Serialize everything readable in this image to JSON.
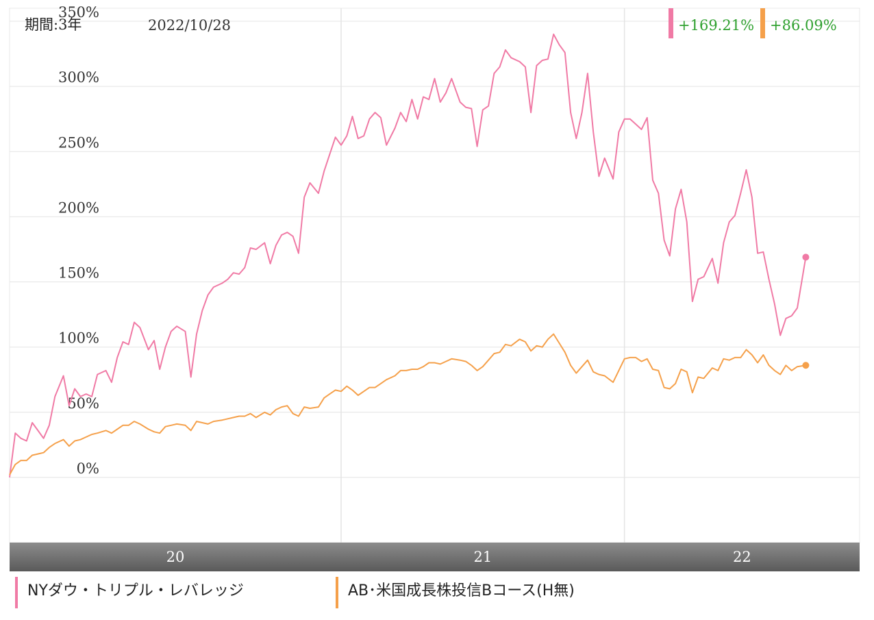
{
  "header": {
    "period_label": "期間:3年",
    "date_label": "2022/10/28"
  },
  "colors": {
    "series1": "#f07aa5",
    "series2": "#f5a04a",
    "return_text": "#2ea02e",
    "grid": "#e4e4e4",
    "axis_text": "#333333",
    "axis_bar_top": "#8c8c8c",
    "axis_bar_bottom": "#5a5a5a"
  },
  "chart_data": {
    "type": "line",
    "ylim": [
      -50,
      360
    ],
    "yticks": [
      0,
      50,
      100,
      150,
      200,
      250,
      300,
      350
    ],
    "ytick_labels": [
      "0%",
      "50%",
      "100%",
      "150%",
      "200%",
      "250%",
      "300%",
      "350%"
    ],
    "xlim": [
      2019.83,
      2022.83
    ],
    "xticks": [
      2020,
      2021,
      2022
    ],
    "year_labels": [
      "20",
      "21",
      "22"
    ],
    "returns": [
      "+169.21%",
      "+86.09%"
    ],
    "series": [
      {
        "name": "NYダウ・トリプル・レバレッジ",
        "color": "#f07aa5",
        "points": [
          [
            2019.83,
            0
          ],
          [
            2019.85,
            34
          ],
          [
            2019.87,
            30
          ],
          [
            2019.89,
            28
          ],
          [
            2019.91,
            42
          ],
          [
            2019.93,
            36
          ],
          [
            2019.95,
            30
          ],
          [
            2019.97,
            40
          ],
          [
            2019.99,
            62
          ],
          [
            2020.02,
            78
          ],
          [
            2020.04,
            55
          ],
          [
            2020.06,
            68
          ],
          [
            2020.08,
            62
          ],
          [
            2020.1,
            64
          ],
          [
            2020.12,
            62
          ],
          [
            2020.14,
            79
          ],
          [
            2020.17,
            82
          ],
          [
            2020.19,
            73
          ],
          [
            2020.21,
            92
          ],
          [
            2020.23,
            104
          ],
          [
            2020.25,
            102
          ],
          [
            2020.27,
            119
          ],
          [
            2020.29,
            115
          ],
          [
            2020.32,
            98
          ],
          [
            2020.34,
            105
          ],
          [
            2020.36,
            83
          ],
          [
            2020.38,
            100
          ],
          [
            2020.4,
            112
          ],
          [
            2020.42,
            116
          ],
          [
            2020.45,
            112
          ],
          [
            2020.47,
            77
          ],
          [
            2020.49,
            110
          ],
          [
            2020.51,
            128
          ],
          [
            2020.53,
            140
          ],
          [
            2020.55,
            146
          ],
          [
            2020.58,
            149
          ],
          [
            2020.6,
            152
          ],
          [
            2020.62,
            157
          ],
          [
            2020.64,
            156
          ],
          [
            2020.66,
            161
          ],
          [
            2020.68,
            176
          ],
          [
            2020.7,
            175
          ],
          [
            2020.73,
            180
          ],
          [
            2020.75,
            164
          ],
          [
            2020.77,
            178
          ],
          [
            2020.79,
            186
          ],
          [
            2020.81,
            188
          ],
          [
            2020.83,
            185
          ],
          [
            2020.85,
            172
          ],
          [
            2020.87,
            215
          ],
          [
            2020.89,
            226
          ],
          [
            2020.92,
            218
          ],
          [
            2020.94,
            235
          ],
          [
            2020.96,
            248
          ],
          [
            2020.98,
            261
          ],
          [
            2021.0,
            255
          ],
          [
            2021.02,
            262
          ],
          [
            2021.04,
            277
          ],
          [
            2021.06,
            260
          ],
          [
            2021.08,
            262
          ],
          [
            2021.1,
            275
          ],
          [
            2021.12,
            280
          ],
          [
            2021.14,
            276
          ],
          [
            2021.16,
            255
          ],
          [
            2021.19,
            268
          ],
          [
            2021.21,
            280
          ],
          [
            2021.23,
            273
          ],
          [
            2021.25,
            290
          ],
          [
            2021.27,
            275
          ],
          [
            2021.29,
            292
          ],
          [
            2021.31,
            290
          ],
          [
            2021.33,
            306
          ],
          [
            2021.35,
            288
          ],
          [
            2021.37,
            295
          ],
          [
            2021.39,
            306
          ],
          [
            2021.42,
            288
          ],
          [
            2021.44,
            284
          ],
          [
            2021.46,
            283
          ],
          [
            2021.48,
            254
          ],
          [
            2021.5,
            282
          ],
          [
            2021.52,
            285
          ],
          [
            2021.54,
            310
          ],
          [
            2021.56,
            315
          ],
          [
            2021.58,
            328
          ],
          [
            2021.6,
            322
          ],
          [
            2021.63,
            319
          ],
          [
            2021.65,
            315
          ],
          [
            2021.67,
            280
          ],
          [
            2021.69,
            316
          ],
          [
            2021.71,
            320
          ],
          [
            2021.73,
            321
          ],
          [
            2021.75,
            340
          ],
          [
            2021.77,
            332
          ],
          [
            2021.79,
            326
          ],
          [
            2021.81,
            280
          ],
          [
            2021.83,
            260
          ],
          [
            2021.85,
            280
          ],
          [
            2021.87,
            310
          ],
          [
            2021.89,
            265
          ],
          [
            2021.91,
            231
          ],
          [
            2021.93,
            245
          ],
          [
            2021.96,
            229
          ],
          [
            2021.98,
            265
          ],
          [
            2022.0,
            275
          ],
          [
            2022.02,
            275
          ],
          [
            2022.04,
            271
          ],
          [
            2022.06,
            267
          ],
          [
            2022.08,
            276
          ],
          [
            2022.1,
            228
          ],
          [
            2022.12,
            218
          ],
          [
            2022.14,
            182
          ],
          [
            2022.16,
            170
          ],
          [
            2022.18,
            206
          ],
          [
            2022.2,
            221
          ],
          [
            2022.22,
            196
          ],
          [
            2022.24,
            135
          ],
          [
            2022.26,
            152
          ],
          [
            2022.28,
            154
          ],
          [
            2022.31,
            168
          ],
          [
            2022.33,
            149
          ],
          [
            2022.35,
            180
          ],
          [
            2022.37,
            196
          ],
          [
            2022.39,
            201
          ],
          [
            2022.41,
            218
          ],
          [
            2022.43,
            236
          ],
          [
            2022.45,
            215
          ],
          [
            2022.47,
            172
          ],
          [
            2022.49,
            173
          ],
          [
            2022.51,
            152
          ],
          [
            2022.53,
            133
          ],
          [
            2022.55,
            109
          ],
          [
            2022.57,
            122
          ],
          [
            2022.59,
            124
          ],
          [
            2022.61,
            130
          ],
          [
            2022.64,
            169
          ]
        ]
      },
      {
        "name": "AB･米国成長株投信Bコース(H無)",
        "color": "#f5a04a",
        "points": [
          [
            2019.83,
            2
          ],
          [
            2019.85,
            10
          ],
          [
            2019.87,
            13
          ],
          [
            2019.89,
            13
          ],
          [
            2019.91,
            17
          ],
          [
            2019.93,
            18
          ],
          [
            2019.95,
            19
          ],
          [
            2019.97,
            23
          ],
          [
            2019.99,
            26
          ],
          [
            2020.02,
            29
          ],
          [
            2020.04,
            24
          ],
          [
            2020.06,
            28
          ],
          [
            2020.08,
            29
          ],
          [
            2020.1,
            31
          ],
          [
            2020.12,
            33
          ],
          [
            2020.14,
            34
          ],
          [
            2020.17,
            36
          ],
          [
            2020.19,
            34
          ],
          [
            2020.21,
            37
          ],
          [
            2020.23,
            40
          ],
          [
            2020.25,
            40
          ],
          [
            2020.27,
            43
          ],
          [
            2020.29,
            41
          ],
          [
            2020.32,
            37
          ],
          [
            2020.34,
            35
          ],
          [
            2020.36,
            34
          ],
          [
            2020.38,
            39
          ],
          [
            2020.4,
            40
          ],
          [
            2020.42,
            41
          ],
          [
            2020.45,
            40
          ],
          [
            2020.47,
            36
          ],
          [
            2020.49,
            43
          ],
          [
            2020.51,
            42
          ],
          [
            2020.53,
            41
          ],
          [
            2020.55,
            43
          ],
          [
            2020.58,
            44
          ],
          [
            2020.6,
            45
          ],
          [
            2020.62,
            46
          ],
          [
            2020.64,
            47
          ],
          [
            2020.66,
            47
          ],
          [
            2020.68,
            49
          ],
          [
            2020.7,
            46
          ],
          [
            2020.73,
            50
          ],
          [
            2020.75,
            48
          ],
          [
            2020.77,
            52
          ],
          [
            2020.79,
            54
          ],
          [
            2020.81,
            55
          ],
          [
            2020.83,
            49
          ],
          [
            2020.85,
            47
          ],
          [
            2020.87,
            54
          ],
          [
            2020.89,
            53
          ],
          [
            2020.92,
            54
          ],
          [
            2020.94,
            61
          ],
          [
            2020.96,
            64
          ],
          [
            2020.98,
            67
          ],
          [
            2021.0,
            66
          ],
          [
            2021.02,
            70
          ],
          [
            2021.04,
            67
          ],
          [
            2021.06,
            63
          ],
          [
            2021.08,
            66
          ],
          [
            2021.1,
            69
          ],
          [
            2021.12,
            69
          ],
          [
            2021.14,
            72
          ],
          [
            2021.16,
            75
          ],
          [
            2021.19,
            78
          ],
          [
            2021.21,
            82
          ],
          [
            2021.23,
            82
          ],
          [
            2021.25,
            83
          ],
          [
            2021.27,
            83
          ],
          [
            2021.29,
            85
          ],
          [
            2021.31,
            88
          ],
          [
            2021.33,
            88
          ],
          [
            2021.35,
            87
          ],
          [
            2021.37,
            89
          ],
          [
            2021.39,
            91
          ],
          [
            2021.42,
            90
          ],
          [
            2021.44,
            89
          ],
          [
            2021.46,
            86
          ],
          [
            2021.48,
            82
          ],
          [
            2021.5,
            85
          ],
          [
            2021.52,
            90
          ],
          [
            2021.54,
            95
          ],
          [
            2021.56,
            96
          ],
          [
            2021.58,
            102
          ],
          [
            2021.6,
            101
          ],
          [
            2021.63,
            106
          ],
          [
            2021.65,
            104
          ],
          [
            2021.67,
            97
          ],
          [
            2021.69,
            101
          ],
          [
            2021.71,
            100
          ],
          [
            2021.73,
            106
          ],
          [
            2021.75,
            110
          ],
          [
            2021.77,
            103
          ],
          [
            2021.79,
            96
          ],
          [
            2021.81,
            86
          ],
          [
            2021.83,
            80
          ],
          [
            2021.85,
            85
          ],
          [
            2021.87,
            90
          ],
          [
            2021.89,
            81
          ],
          [
            2021.91,
            79
          ],
          [
            2021.93,
            78
          ],
          [
            2021.96,
            73
          ],
          [
            2021.98,
            82
          ],
          [
            2022.0,
            91
          ],
          [
            2022.02,
            92
          ],
          [
            2022.04,
            92
          ],
          [
            2022.06,
            89
          ],
          [
            2022.08,
            91
          ],
          [
            2022.1,
            83
          ],
          [
            2022.12,
            82
          ],
          [
            2022.14,
            69
          ],
          [
            2022.16,
            68
          ],
          [
            2022.18,
            72
          ],
          [
            2022.2,
            83
          ],
          [
            2022.22,
            81
          ],
          [
            2022.24,
            65
          ],
          [
            2022.26,
            77
          ],
          [
            2022.28,
            76
          ],
          [
            2022.31,
            84
          ],
          [
            2022.33,
            82
          ],
          [
            2022.35,
            91
          ],
          [
            2022.37,
            90
          ],
          [
            2022.39,
            92
          ],
          [
            2022.41,
            92
          ],
          [
            2022.43,
            98
          ],
          [
            2022.45,
            94
          ],
          [
            2022.47,
            88
          ],
          [
            2022.49,
            94
          ],
          [
            2022.51,
            86
          ],
          [
            2022.53,
            82
          ],
          [
            2022.55,
            79
          ],
          [
            2022.57,
            86
          ],
          [
            2022.59,
            82
          ],
          [
            2022.61,
            85
          ],
          [
            2022.64,
            86
          ]
        ]
      }
    ]
  }
}
